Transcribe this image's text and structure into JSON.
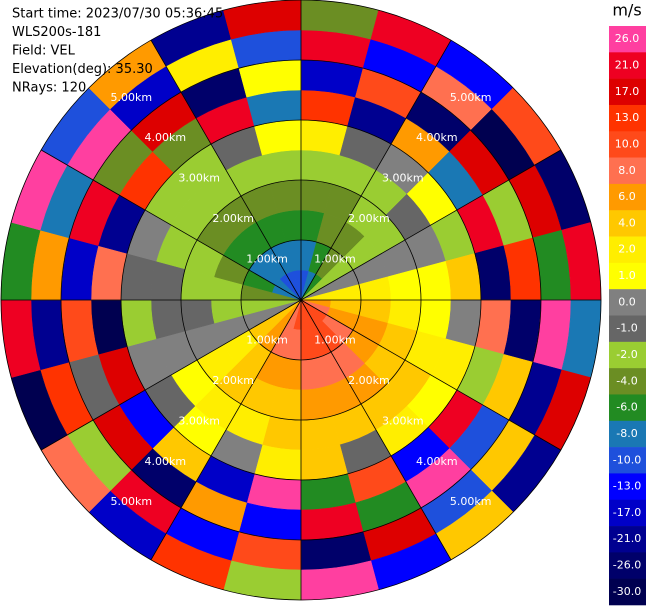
{
  "chart_data": {
    "type": "ppi",
    "info": [
      "Start time: 2023/07/30 05:36:45",
      "WLS200s-181",
      "Field: VEL",
      "Elevation(deg): 35.30",
      "NRays: 120"
    ],
    "colorbar": {
      "title": "m/s",
      "ticks": [
        {
          "value": 26,
          "label": "26.0"
        },
        {
          "value": 21,
          "label": "21.0"
        },
        {
          "value": 17,
          "label": "17.0"
        },
        {
          "value": 13,
          "label": "13.0"
        },
        {
          "value": 10,
          "label": "10.0"
        },
        {
          "value": 8,
          "label": "8.0"
        },
        {
          "value": 6,
          "label": "6.0"
        },
        {
          "value": 4,
          "label": "4.0"
        },
        {
          "value": 2,
          "label": "2.0"
        },
        {
          "value": 1,
          "label": "1.0"
        },
        {
          "value": 0,
          "label": "0.0"
        },
        {
          "value": -1,
          "label": "-1.0"
        },
        {
          "value": -2,
          "label": "-2.0"
        },
        {
          "value": -4,
          "label": "-4.0"
        },
        {
          "value": -6,
          "label": "-6.0"
        },
        {
          "value": -8,
          "label": "-8.0"
        },
        {
          "value": -10,
          "label": "-10.0"
        },
        {
          "value": -13,
          "label": "-13.0"
        },
        {
          "value": -17,
          "label": "-17.0"
        },
        {
          "value": -21,
          "label": "-21.0"
        },
        {
          "value": -26,
          "label": "-26.0"
        },
        {
          "value": -30,
          "label": "-30.0"
        }
      ],
      "colors": [
        "#ff3fa0",
        "#ee0022",
        "#dd0000",
        "#ff3300",
        "#ff4a1a",
        "#ff7050",
        "#ff9a00",
        "#ffc800",
        "#ffee00",
        "#ffff00",
        "#808080",
        "#666666",
        "#9acd32",
        "#6b8e23",
        "#228b22",
        "#1a78b4",
        "#1e50dc",
        "#0000ff",
        "#0000c8",
        "#000090",
        "#00006a",
        "#000050"
      ]
    },
    "rings": [
      {
        "value": 1,
        "label": "1.00km"
      },
      {
        "value": 2,
        "label": "2.00km"
      },
      {
        "value": 3,
        "label": "3.00km"
      },
      {
        "value": 4,
        "label": "4.00km"
      },
      {
        "value": 5,
        "label": "5.00km"
      }
    ],
    "velocity": [
      [
        -10,
        -8,
        -6,
        -3,
        0,
        2,
        5,
        8,
        9,
        10,
        11,
        11,
        10,
        8,
        6,
        3,
        0,
        -2,
        -5,
        -8,
        -9,
        -10,
        -11,
        -11
      ],
      [
        -8,
        -7,
        -5,
        -3,
        0,
        2,
        4,
        6,
        8,
        9,
        9,
        9,
        8,
        7,
        5,
        3,
        0,
        -2,
        -4,
        -6,
        -8,
        -9,
        -9,
        -9
      ],
      [
        -6,
        -5,
        -4,
        -2,
        0,
        2,
        3,
        5,
        6,
        7,
        7,
        7,
        6,
        5,
        4,
        2,
        0,
        -2,
        -3,
        -5,
        -6,
        -7,
        -7,
        -7
      ],
      [
        -4,
        -4,
        -3,
        -2,
        0,
        1,
        2,
        3,
        4,
        5,
        5,
        5,
        4,
        4,
        3,
        2,
        0,
        -1,
        -2,
        -3,
        -4,
        -5,
        -5,
        -5
      ],
      [
        -3,
        -2,
        -2,
        -1,
        0,
        1,
        1,
        2,
        3,
        3,
        3,
        3,
        3,
        2,
        2,
        1,
        0,
        -1,
        -1,
        -2,
        -3,
        -3,
        -3,
        -3
      ],
      [
        2,
        -1,
        0,
        1,
        -2,
        3,
        0,
        2,
        1,
        2,
        -1,
        3,
        2,
        0,
        1,
        -1,
        0,
        -2,
        -1,
        0,
        -3,
        -2,
        -1,
        1
      ],
      [
        14,
        -22,
        5,
        -9,
        19,
        -27,
        8,
        -3,
        23,
        -15,
        11,
        -6,
        24,
        -18,
        3,
        -12,
        16,
        -29,
        7,
        -20,
        12,
        -4,
        21,
        -8
      ],
      [
        -17,
        9,
        -25,
        18,
        -2,
        13,
        -28,
        4,
        -11,
        25,
        -7,
        20,
        -13,
        6,
        -24,
        15,
        -1,
        10,
        -19,
        22,
        -5,
        17,
        -26,
        1
      ],
      [
        22,
        -13,
        7,
        -29,
        16,
        -6,
        25,
        -20,
        3,
        -10,
        18,
        -27,
        9,
        -15,
        21,
        -3,
        14,
        -23,
        6,
        -9,
        26,
        -16,
        2,
        -11
      ],
      [
        -5,
        19,
        -12,
        10,
        -26,
        23,
        -8,
        15,
        -21,
        4,
        -14,
        27,
        -2,
        12,
        -18,
        8,
        -30,
        20,
        -7,
        24,
        -10,
        5,
        -22,
        18
      ]
    ]
  }
}
